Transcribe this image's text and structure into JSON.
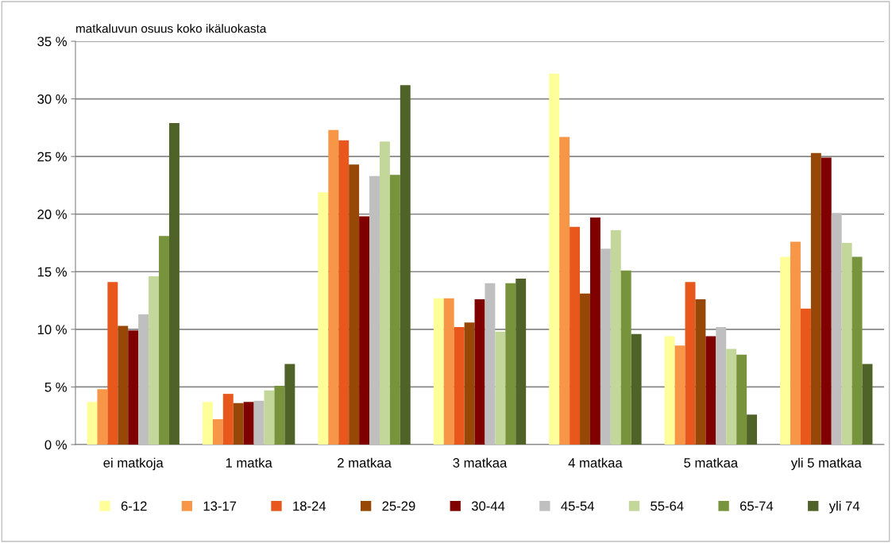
{
  "chart_data": {
    "type": "bar",
    "ylabel": "matkaluvun osuus koko ikäluokasta",
    "categories": [
      "ei matkoja",
      "1 matka",
      "2 matkaa",
      "3 matkaa",
      "4 matkaa",
      "5 matkaa",
      "yli 5 matkaa"
    ],
    "series": [
      {
        "name": "6-12",
        "color": "#ffff99",
        "values": [
          3.7,
          3.7,
          21.9,
          12.7,
          32.2,
          9.4,
          16.3
        ]
      },
      {
        "name": "13-17",
        "color": "#f79646",
        "values": [
          4.8,
          2.2,
          27.3,
          12.7,
          26.7,
          8.6,
          17.6
        ]
      },
      {
        "name": "18-24",
        "color": "#e8571b",
        "values": [
          14.1,
          4.4,
          26.4,
          10.2,
          18.9,
          14.1,
          11.8
        ]
      },
      {
        "name": "25-29",
        "color": "#974806",
        "values": [
          10.3,
          3.6,
          24.3,
          10.6,
          13.1,
          12.6,
          25.3
        ]
      },
      {
        "name": "30-44",
        "color": "#800000",
        "values": [
          9.9,
          3.7,
          19.8,
          12.6,
          19.7,
          9.4,
          24.9
        ]
      },
      {
        "name": "45-54",
        "color": "#bfbfbf",
        "values": [
          11.3,
          3.8,
          23.3,
          14.0,
          17.0,
          10.2,
          20.1
        ]
      },
      {
        "name": "55-64",
        "color": "#c4d79b",
        "values": [
          14.6,
          4.7,
          26.3,
          9.8,
          18.6,
          8.3,
          17.5
        ]
      },
      {
        "name": "65-74",
        "color": "#77933c",
        "values": [
          18.1,
          5.1,
          23.4,
          14.0,
          15.1,
          7.8,
          16.3
        ]
      },
      {
        "name": "yli 74",
        "color": "#4f6228",
        "values": [
          27.9,
          7.0,
          31.2,
          14.4,
          9.6,
          2.6,
          7.0
        ]
      }
    ],
    "ylim": [
      0,
      35
    ],
    "yticks": [
      {
        "value": 0,
        "label": "0 %"
      },
      {
        "value": 5,
        "label": "5 %"
      },
      {
        "value": 10,
        "label": "10 %"
      },
      {
        "value": 15,
        "label": "15 %"
      },
      {
        "value": 20,
        "label": "20 %"
      },
      {
        "value": 25,
        "label": "25 %"
      },
      {
        "value": 30,
        "label": "30 %"
      },
      {
        "value": 35,
        "label": "35 %"
      }
    ],
    "grid": "y",
    "legend": "bottom"
  }
}
